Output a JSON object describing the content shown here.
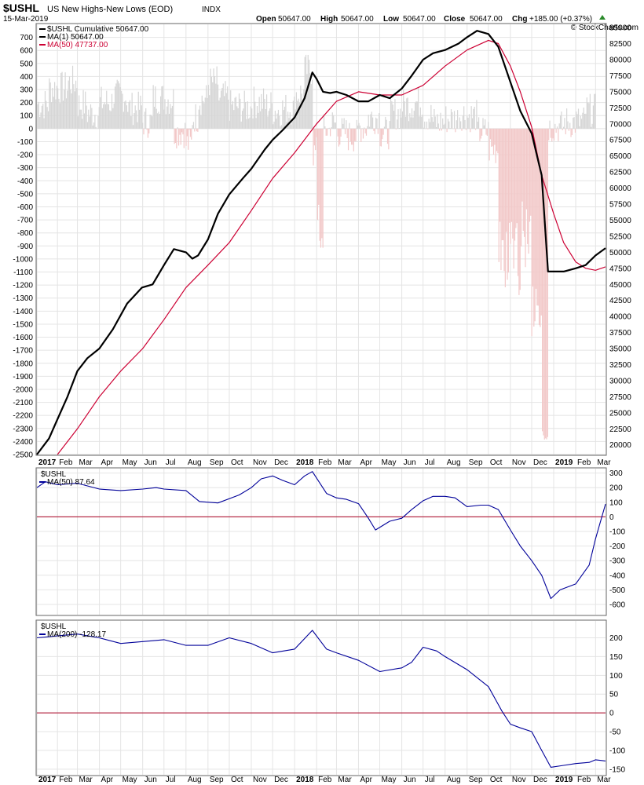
{
  "header": {
    "symbol": "$USHL",
    "name": "US New Highs-New Lows (EOD)",
    "exchange": "INDX",
    "date": "15-Mar-2019",
    "quote": {
      "open_label": "Open",
      "open": "50647.00",
      "high_label": "High",
      "high": "50647.00",
      "low_label": "Low",
      "low": "50647.00",
      "close_label": "Close",
      "close": "50647.00",
      "chg_label": "Chg",
      "chg": "+185.00 (+0.37%)"
    },
    "watermark": "© StockCharts.com"
  },
  "colors": {
    "cumulative": "#000000",
    "ma50_red": "#cc0033",
    "ma_blue": "#000099",
    "hist_pos": "#d6d6d6",
    "hist_neg": "#f2c8c8",
    "zero_line": "#aa0022",
    "grid": "#e4e4e4"
  },
  "chart_data": [
    {
      "type": "line",
      "panel": "main",
      "legend": [
        {
          "label": "$USHL Cumulative 50647.00"
        },
        {
          "label": "MA(1) 50647.00"
        },
        {
          "label": "MA(50) 47737.00"
        }
      ],
      "left_axis_ticks": [
        "700",
        "600",
        "500",
        "400",
        "300",
        "200",
        "100",
        "0",
        "-100",
        "-200",
        "-300",
        "-400",
        "-500",
        "-600",
        "-700",
        "-800",
        "-900",
        "-1000",
        "-1100",
        "-1200",
        "-1300",
        "-1400",
        "-1500",
        "-1600",
        "-1700",
        "-1800",
        "-1900",
        "-2000",
        "-2100",
        "-2200",
        "-2300",
        "-2400",
        "-2500"
      ],
      "left_ylim": [
        -2500,
        800
      ],
      "right_axis_ticks": [
        "85000",
        "82500",
        "80000",
        "77500",
        "75000",
        "72500",
        "70000",
        "67500",
        "65000",
        "62500",
        "60000",
        "57500",
        "55000",
        "52500",
        "50000",
        "47500",
        "45000",
        "42500",
        "40000",
        "37500",
        "35000",
        "32500",
        "30000",
        "27500",
        "25000",
        "22500",
        "20000"
      ],
      "right_ylim": [
        18500,
        85500
      ],
      "x_ticks": [
        "2017",
        "Feb",
        "Mar",
        "Apr",
        "May",
        "Jun",
        "Jul",
        "Aug",
        "Sep",
        "Oct",
        "Nov",
        "Dec",
        "2018",
        "Feb",
        "Mar",
        "Apr",
        "May",
        "Jun",
        "Jul",
        "Aug",
        "Sep",
        "Oct",
        "Nov",
        "Dec",
        "2019",
        "Feb",
        "Mar"
      ],
      "x_range": [
        "2017-01-03",
        "2019-03-15"
      ],
      "series": [
        {
          "name": "$USHL Cumulative",
          "axis": "right",
          "color": "#000000",
          "x": [
            "2017-01-03",
            "2017-01-20",
            "2017-02-01",
            "2017-02-15",
            "2017-03-01",
            "2017-03-15",
            "2017-04-01",
            "2017-04-20",
            "2017-05-10",
            "2017-05-31",
            "2017-06-15",
            "2017-07-01",
            "2017-07-15",
            "2017-08-01",
            "2017-08-10",
            "2017-08-18",
            "2017-09-01",
            "2017-09-15",
            "2017-10-01",
            "2017-10-20",
            "2017-11-01",
            "2017-11-20",
            "2017-12-01",
            "2017-12-15",
            "2018-01-01",
            "2018-01-15",
            "2018-01-26",
            "2018-02-01",
            "2018-02-10",
            "2018-02-20",
            "2018-03-01",
            "2018-03-15",
            "2018-04-01",
            "2018-04-15",
            "2018-05-01",
            "2018-05-15",
            "2018-06-01",
            "2018-06-15",
            "2018-07-01",
            "2018-07-15",
            "2018-08-01",
            "2018-08-20",
            "2018-09-01",
            "2018-09-15",
            "2018-10-01",
            "2018-10-15",
            "2018-11-01",
            "2018-11-15",
            "2018-12-01",
            "2018-12-15",
            "2018-12-24",
            "2019-01-15",
            "2019-02-01",
            "2019-02-15",
            "2019-03-01",
            "2019-03-15"
          ],
          "values": [
            18500,
            21000,
            24000,
            27500,
            31500,
            33500,
            35000,
            38000,
            42000,
            44500,
            45000,
            48000,
            50500,
            50000,
            49000,
            49500,
            52000,
            56000,
            59000,
            61500,
            63000,
            66000,
            67500,
            69000,
            71000,
            74000,
            78000,
            77000,
            75000,
            74800,
            75000,
            74500,
            73500,
            73500,
            74500,
            74000,
            75500,
            77500,
            80000,
            81000,
            81500,
            82500,
            83500,
            84500,
            84000,
            82000,
            76500,
            72000,
            68500,
            62000,
            47000,
            47000,
            47500,
            48000,
            49500,
            50647
          ]
        },
        {
          "name": "MA(50)",
          "axis": "right",
          "color": "#cc0033",
          "x": [
            "2017-02-01",
            "2017-03-01",
            "2017-04-01",
            "2017-05-01",
            "2017-06-01",
            "2017-07-01",
            "2017-08-01",
            "2017-09-01",
            "2017-10-01",
            "2017-11-01",
            "2017-12-01",
            "2018-01-01",
            "2018-02-01",
            "2018-03-01",
            "2018-04-01",
            "2018-05-01",
            "2018-06-01",
            "2018-07-01",
            "2018-08-01",
            "2018-09-01",
            "2018-10-01",
            "2018-10-15",
            "2018-11-01",
            "2018-11-15",
            "2018-12-01",
            "2018-12-15",
            "2019-01-01",
            "2019-01-15",
            "2019-02-01",
            "2019-02-15",
            "2019-03-01",
            "2019-03-15"
          ],
          "values": [
            18500,
            22500,
            27500,
            31500,
            35000,
            39500,
            44500,
            48000,
            51500,
            56500,
            61500,
            65500,
            70000,
            73500,
            75000,
            74500,
            74500,
            76000,
            79000,
            81500,
            83000,
            82500,
            79000,
            75000,
            69500,
            62000,
            56000,
            51500,
            48500,
            47500,
            47200,
            47737
          ]
        }
      ],
      "histogram": {
        "name": "daily net new highs-new lows",
        "axis": "left",
        "approx_extremes": {
          "max": 700,
          "min": -2400
        }
      }
    },
    {
      "type": "line",
      "panel": "middle",
      "legend": [
        {
          "label": "$USHL"
        },
        {
          "label": "MA(50) 87.64"
        }
      ],
      "right_axis_ticks": [
        "300",
        "200",
        "100",
        "0",
        "-100",
        "-200",
        "-300",
        "-400",
        "-500",
        "-600"
      ],
      "ylim": [
        -670,
        330
      ],
      "x_range": [
        "2017-01-03",
        "2019-03-15"
      ],
      "series": [
        {
          "name": "MA(50)",
          "color": "#000099",
          "x": [
            "2017-01-03",
            "2017-01-15",
            "2017-02-01",
            "2017-03-01",
            "2017-04-01",
            "2017-05-01",
            "2017-06-01",
            "2017-06-20",
            "2017-07-01",
            "2017-08-01",
            "2017-08-20",
            "2017-09-15",
            "2017-10-15",
            "2017-11-01",
            "2017-11-15",
            "2017-12-01",
            "2017-12-15",
            "2018-01-01",
            "2018-01-15",
            "2018-01-26",
            "2018-02-15",
            "2018-03-01",
            "2018-03-15",
            "2018-04-01",
            "2018-04-15",
            "2018-04-25",
            "2018-05-15",
            "2018-06-01",
            "2018-06-15",
            "2018-07-01",
            "2018-07-15",
            "2018-08-01",
            "2018-08-15",
            "2018-09-01",
            "2018-09-20",
            "2018-10-01",
            "2018-10-15",
            "2018-11-01",
            "2018-11-15",
            "2018-12-01",
            "2018-12-15",
            "2018-12-28",
            "2019-01-10",
            "2019-02-01",
            "2019-02-20",
            "2019-03-01",
            "2019-03-15"
          ],
          "values": [
            200,
            240,
            220,
            230,
            190,
            180,
            190,
            200,
            190,
            180,
            105,
            95,
            150,
            200,
            260,
            280,
            250,
            220,
            280,
            310,
            160,
            130,
            120,
            90,
            -10,
            -90,
            -30,
            -10,
            50,
            110,
            140,
            140,
            130,
            70,
            80,
            80,
            50,
            -90,
            -200,
            -300,
            -400,
            -560,
            -500,
            -460,
            -330,
            -150,
            87.64
          ]
        }
      ]
    },
    {
      "type": "line",
      "panel": "bottom",
      "legend": [
        {
          "label": "$USHL"
        },
        {
          "label": "MA(200) -128.17"
        }
      ],
      "right_axis_ticks": [
        "200",
        "150",
        "100",
        "50",
        "0",
        "-50",
        "-100",
        "-150"
      ],
      "ylim": [
        -165,
        245
      ],
      "x_range": [
        "2017-01-03",
        "2019-03-15"
      ],
      "series": [
        {
          "name": "MA(200)",
          "color": "#000099",
          "x": [
            "2017-01-03",
            "2017-02-01",
            "2017-03-01",
            "2017-04-01",
            "2017-05-01",
            "2017-06-01",
            "2017-07-01",
            "2017-08-01",
            "2017-09-01",
            "2017-10-01",
            "2017-11-01",
            "2017-12-01",
            "2018-01-01",
            "2018-01-26",
            "2018-02-15",
            "2018-03-01",
            "2018-04-01",
            "2018-05-01",
            "2018-06-01",
            "2018-06-15",
            "2018-07-01",
            "2018-07-20",
            "2018-08-01",
            "2018-09-01",
            "2018-10-01",
            "2018-10-20",
            "2018-11-01",
            "2018-11-15",
            "2018-12-01",
            "2018-12-15",
            "2018-12-28",
            "2019-01-15",
            "2019-02-01",
            "2019-02-20",
            "2019-03-01",
            "2019-03-15"
          ],
          "values": [
            200,
            205,
            210,
            200,
            185,
            190,
            195,
            180,
            180,
            200,
            185,
            160,
            170,
            220,
            170,
            160,
            140,
            110,
            120,
            135,
            175,
            165,
            150,
            115,
            70,
            5,
            -30,
            -40,
            -50,
            -100,
            -145,
            -140,
            -135,
            -132,
            -125,
            -128.17
          ]
        }
      ]
    }
  ]
}
